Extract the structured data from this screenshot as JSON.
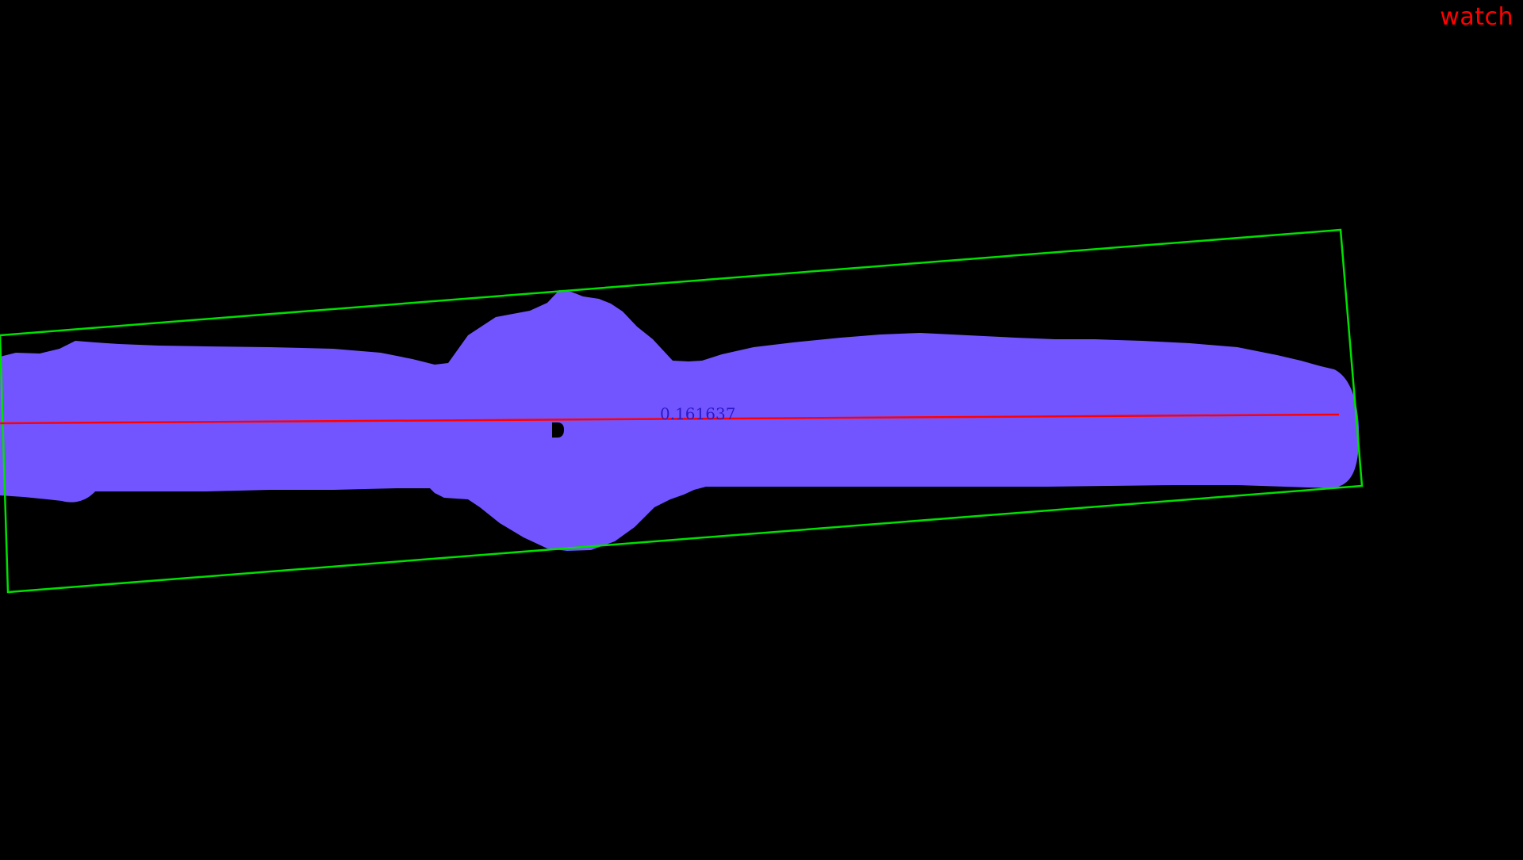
{
  "label": "watch",
  "score": "0.161637",
  "colors": {
    "background": "#000000",
    "mask": "#7355FF",
    "bounding_box": "#00E000",
    "axis_line": "#FF0000",
    "label_text": "#FF0000",
    "score_text": "#2A18C8",
    "center_marker": "#000000"
  }
}
